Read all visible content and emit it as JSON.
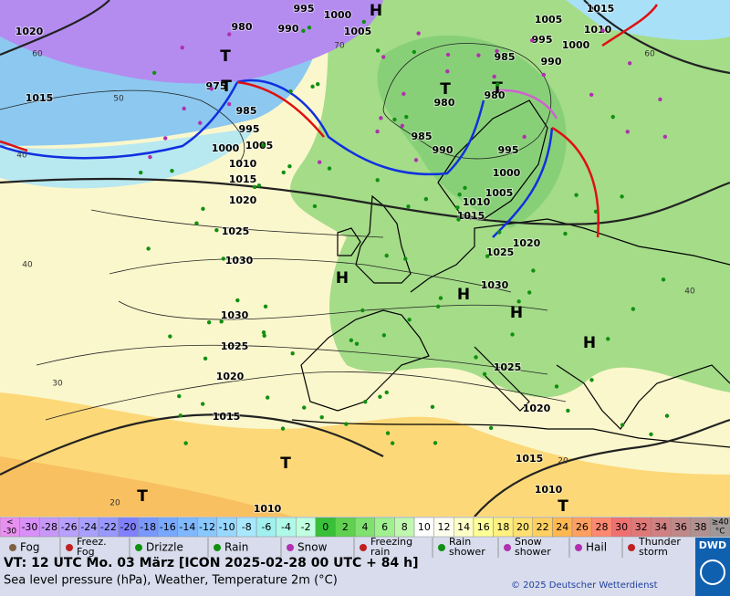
{
  "map": {
    "pressure_labels": [
      "995",
      "1000",
      "1005",
      "1020",
      "980",
      "990",
      "975",
      "985",
      "995",
      "1000",
      "1005",
      "1010",
      "1015",
      "1020",
      "1025",
      "1030",
      "1030",
      "1025",
      "1020",
      "1015",
      "1010",
      "1015",
      "1005",
      "1015",
      "1010",
      "995",
      "1000",
      "985",
      "990",
      "980",
      "980",
      "985",
      "990",
      "995",
      "1000",
      "1005",
      "1010",
      "1015",
      "1020",
      "1025",
      "1030",
      "1025",
      "1020",
      "1015",
      "1010"
    ],
    "centers": [
      "H",
      "T",
      "T",
      "T",
      "T",
      "H",
      "H",
      "H",
      "H",
      "T",
      "T",
      "T"
    ],
    "temperature_labels": [
      "60",
      "40",
      "40",
      "30",
      "20",
      "60",
      "40",
      "20",
      "50",
      "70"
    ]
  },
  "scale": [
    {
      "lines": [
        "<",
        "-30"
      ],
      "color": "#e890f0"
    },
    {
      "lines": [
        "-30"
      ],
      "color": "#d890f8"
    },
    {
      "lines": [
        "-28"
      ],
      "color": "#c898f8"
    },
    {
      "lines": [
        "-26"
      ],
      "color": "#b8a0ff"
    },
    {
      "lines": [
        "-24"
      ],
      "color": "#a8a0ff"
    },
    {
      "lines": [
        "-22"
      ],
      "color": "#9898ff"
    },
    {
      "lines": [
        "-20"
      ],
      "color": "#8080ff"
    },
    {
      "lines": [
        "-18"
      ],
      "color": "#7898ff"
    },
    {
      "lines": [
        "-16"
      ],
      "color": "#78a8ff"
    },
    {
      "lines": [
        "-14"
      ],
      "color": "#80b8ff"
    },
    {
      "lines": [
        "-12"
      ],
      "color": "#88c8ff"
    },
    {
      "lines": [
        "-10"
      ],
      "color": "#98d8ff"
    },
    {
      "lines": [
        "-8"
      ],
      "color": "#a8e8ff"
    },
    {
      "lines": [
        "-6"
      ],
      "color": "#a0f0f0"
    },
    {
      "lines": [
        "-4"
      ],
      "color": "#b0f8e8"
    },
    {
      "lines": [
        "-2"
      ],
      "color": "#c0ffe0"
    },
    {
      "lines": [
        "0"
      ],
      "color": "#38c038"
    },
    {
      "lines": [
        "2"
      ],
      "color": "#60d050"
    },
    {
      "lines": [
        "4"
      ],
      "color": "#80e070"
    },
    {
      "lines": [
        "6"
      ],
      "color": "#a0f090"
    },
    {
      "lines": [
        "8"
      ],
      "color": "#c0f8b0"
    },
    {
      "lines": [
        "10"
      ],
      "color": "#ffffff"
    },
    {
      "lines": [
        "12"
      ],
      "color": "#fffff0"
    },
    {
      "lines": [
        "14"
      ],
      "color": "#ffffc8"
    },
    {
      "lines": [
        "16"
      ],
      "color": "#ffff98"
    },
    {
      "lines": [
        "18"
      ],
      "color": "#fff080"
    },
    {
      "lines": [
        "20"
      ],
      "color": "#ffe070"
    },
    {
      "lines": [
        "22"
      ],
      "color": "#ffd060"
    },
    {
      "lines": [
        "24"
      ],
      "color": "#ffb850"
    },
    {
      "lines": [
        "26"
      ],
      "color": "#ffa060"
    },
    {
      "lines": [
        "28"
      ],
      "color": "#ff8870"
    },
    {
      "lines": [
        "30"
      ],
      "color": "#f07070"
    },
    {
      "lines": [
        "32"
      ],
      "color": "#e07878"
    },
    {
      "lines": [
        "34"
      ],
      "color": "#d08080"
    },
    {
      "lines": [
        "36"
      ],
      "color": "#c08888"
    },
    {
      "lines": [
        "38"
      ],
      "color": "#b09090"
    },
    {
      "lines": [
        "≥40",
        "°C"
      ],
      "color": "#a09898"
    }
  ],
  "legend": [
    {
      "lines": [
        "Fog"
      ]
    },
    {
      "lines": [
        "Freez.",
        "Fog"
      ]
    },
    {
      "lines": [
        "Drizzle"
      ]
    },
    {
      "lines": [
        "Rain"
      ]
    },
    {
      "lines": [
        "Snow"
      ]
    },
    {
      "lines": [
        "Freezing",
        "rain"
      ]
    },
    {
      "lines": [
        "Rain",
        "shower"
      ]
    },
    {
      "lines": [
        "Snow",
        "shower"
      ]
    },
    {
      "lines": [
        "Hail"
      ]
    },
    {
      "lines": [
        "Thunder",
        "storm"
      ]
    }
  ],
  "footer": {
    "valid_time": "VT: 12 UTC Mo.  03 März [ICON 2025-02-28  00 UTC + 84 h]",
    "description": "Sea level pressure (hPa), Weather, Temperature 2m (°C)",
    "copyright": "© 2025 Deutscher Wetterdienst",
    "logo": "DWD"
  }
}
